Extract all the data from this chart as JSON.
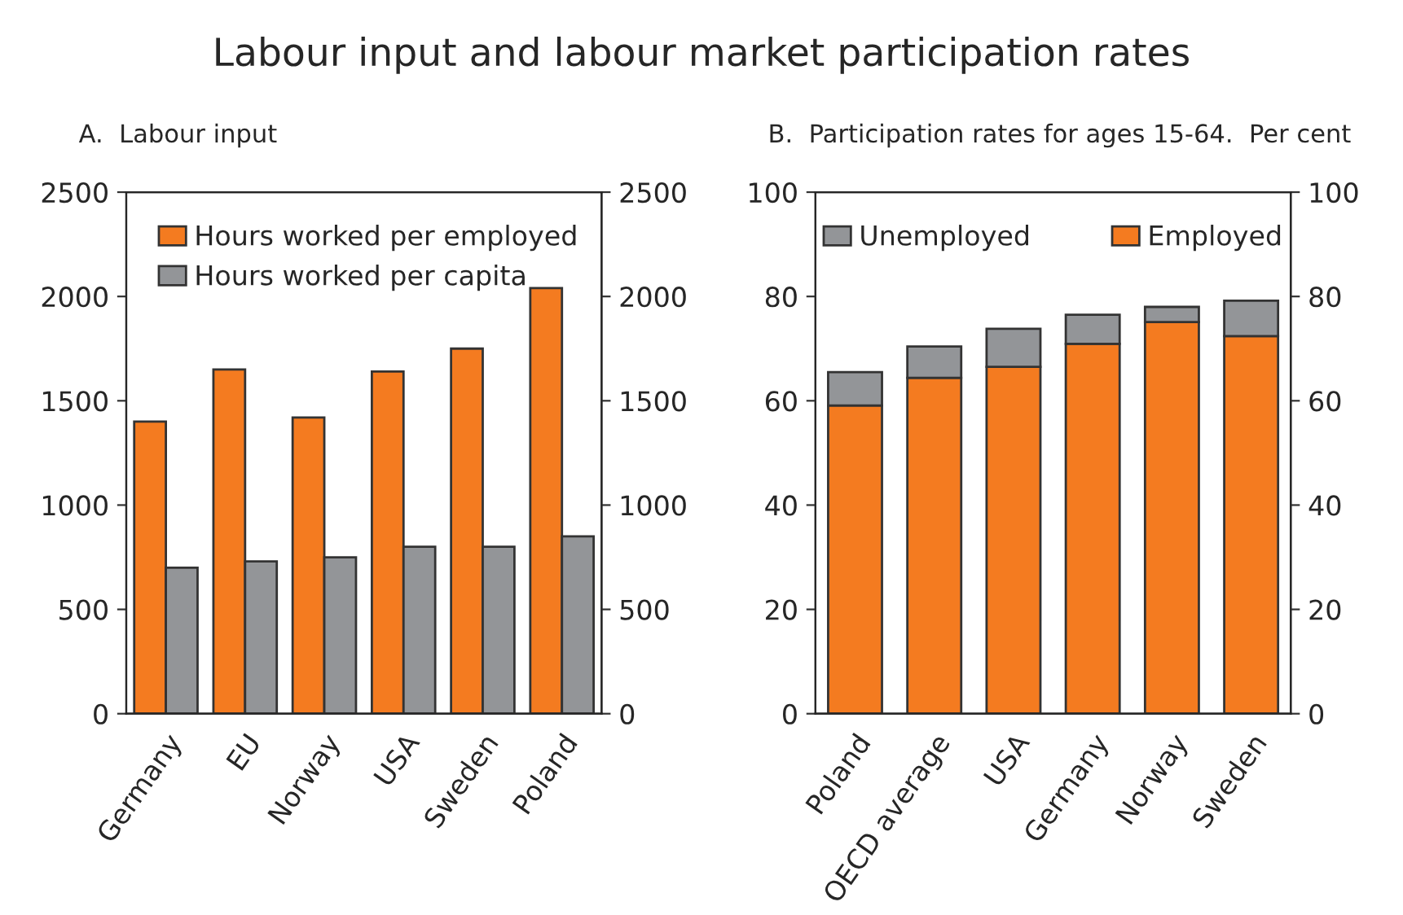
{
  "chart_data": [
    {
      "type": "bar",
      "title": "Labour input and labour market participation rates",
      "subtitle": "A.  Labour input",
      "categories": [
        "Germany",
        "EU",
        "Norway",
        "USA",
        "Sweden",
        "Poland"
      ],
      "series": [
        {
          "name": "Hours worked per employed",
          "color": "#f47b20",
          "values": [
            1400,
            1650,
            1420,
            1640,
            1750,
            2040
          ]
        },
        {
          "name": "Hours worked per capita",
          "color": "#939598",
          "values": [
            700,
            730,
            750,
            800,
            800,
            850
          ]
        }
      ],
      "ylim": [
        0,
        2500
      ],
      "yticks": [
        0,
        500,
        1000,
        1500,
        2000,
        2500
      ],
      "y2lim": [
        0,
        2500
      ],
      "y2ticks": [
        0,
        500,
        1000,
        1500,
        2000,
        2500
      ],
      "legend": "top left",
      "grid": false
    },
    {
      "type": "bar",
      "subtitle": "B.  Participation rates for ages 15-64.  Per cent",
      "categories": [
        "Poland",
        "OECD average",
        "USA",
        "Germany",
        "Norway",
        "Sweden"
      ],
      "stacked": true,
      "series": [
        {
          "name": "Employed",
          "color": "#f47b20",
          "values": [
            59.1,
            64.4,
            66.5,
            70.9,
            75.1,
            72.4
          ]
        },
        {
          "name": "Unemployed",
          "color": "#939598",
          "values": [
            6.4,
            6.0,
            7.3,
            5.6,
            2.9,
            6.8
          ]
        }
      ],
      "ylim": [
        0,
        100
      ],
      "yticks": [
        0,
        20,
        40,
        60,
        80,
        100
      ],
      "y2lim": [
        0,
        100
      ],
      "y2ticks": [
        0,
        20,
        40,
        60,
        80,
        100
      ],
      "legend": "top",
      "grid": false
    }
  ]
}
